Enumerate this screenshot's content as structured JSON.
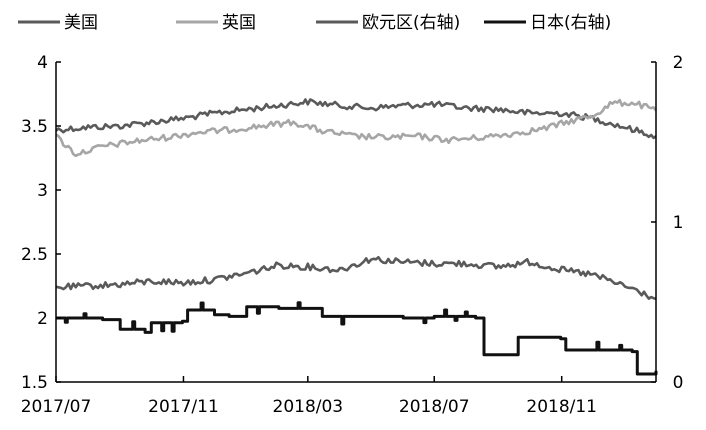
{
  "chart_data": {
    "type": "line",
    "title": "",
    "xlabel": "",
    "ylabel_left": "",
    "ylabel_right": "",
    "x_range": [
      "2017-07-01",
      "2019-01-31"
    ],
    "x_ticks": [
      {
        "date": "2017-07-01",
        "label": "2017/07"
      },
      {
        "date": "2017-11-01",
        "label": "2017/11"
      },
      {
        "date": "2018-03-01",
        "label": "2018/03"
      },
      {
        "date": "2018-07-01",
        "label": "2018/07"
      },
      {
        "date": "2018-11-01",
        "label": "2018/11"
      }
    ],
    "y_left": {
      "min": 1.5,
      "max": 4,
      "ticks": [
        "1.5",
        "2",
        "2.5",
        "3",
        "3.5",
        "4"
      ]
    },
    "y_right": {
      "min": 0,
      "max": 2,
      "ticks": [
        "0",
        "1",
        "2"
      ]
    },
    "grid": false,
    "legend_position": "top",
    "series": [
      {
        "name": "美国",
        "axis": "left",
        "color": "#5a5a5a",
        "points": [
          [
            "2017-07-01",
            3.47
          ],
          [
            "2017-08-01",
            3.49
          ],
          [
            "2017-09-01",
            3.5
          ],
          [
            "2017-10-01",
            3.53
          ],
          [
            "2017-11-01",
            3.56
          ],
          [
            "2017-12-01",
            3.6
          ],
          [
            "2018-01-01",
            3.63
          ],
          [
            "2018-02-01",
            3.66
          ],
          [
            "2018-03-01",
            3.69
          ],
          [
            "2018-04-01",
            3.66
          ],
          [
            "2018-05-01",
            3.64
          ],
          [
            "2018-06-01",
            3.66
          ],
          [
            "2018-07-01",
            3.67
          ],
          [
            "2018-08-01",
            3.64
          ],
          [
            "2018-09-01",
            3.63
          ],
          [
            "2018-10-01",
            3.6
          ],
          [
            "2018-11-01",
            3.6
          ],
          [
            "2018-12-01",
            3.56
          ],
          [
            "2019-01-01",
            3.49
          ],
          [
            "2019-01-31",
            3.42
          ]
        ]
      },
      {
        "name": "英国",
        "axis": "left",
        "color": "#a6a6a6",
        "points": [
          [
            "2017-07-01",
            3.42
          ],
          [
            "2017-07-20",
            3.28
          ],
          [
            "2017-08-15",
            3.34
          ],
          [
            "2017-09-15",
            3.38
          ],
          [
            "2017-10-15",
            3.41
          ],
          [
            "2017-11-15",
            3.45
          ],
          [
            "2017-12-15",
            3.47
          ],
          [
            "2018-01-15",
            3.5
          ],
          [
            "2018-02-15",
            3.53
          ],
          [
            "2018-03-15",
            3.46
          ],
          [
            "2018-04-15",
            3.42
          ],
          [
            "2018-05-15",
            3.41
          ],
          [
            "2018-06-15",
            3.42
          ],
          [
            "2018-07-15",
            3.39
          ],
          [
            "2018-08-15",
            3.41
          ],
          [
            "2018-09-15",
            3.44
          ],
          [
            "2018-10-15",
            3.48
          ],
          [
            "2018-11-15",
            3.55
          ],
          [
            "2018-12-01",
            3.58
          ],
          [
            "2018-12-20",
            3.68
          ],
          [
            "2019-01-10",
            3.68
          ],
          [
            "2019-01-31",
            3.62
          ]
        ]
      },
      {
        "name": "欧元区(右轴)",
        "axis": "right",
        "color": "#5a5a5a",
        "points": [
          [
            "2017-07-01",
            0.59
          ],
          [
            "2017-08-01",
            0.6
          ],
          [
            "2017-09-01",
            0.61
          ],
          [
            "2017-10-01",
            0.63
          ],
          [
            "2017-11-01",
            0.62
          ],
          [
            "2017-12-01",
            0.64
          ],
          [
            "2018-01-01",
            0.68
          ],
          [
            "2018-02-01",
            0.73
          ],
          [
            "2018-03-01",
            0.72
          ],
          [
            "2018-04-01",
            0.7
          ],
          [
            "2018-05-01",
            0.77
          ],
          [
            "2018-06-01",
            0.75
          ],
          [
            "2018-07-01",
            0.74
          ],
          [
            "2018-08-01",
            0.74
          ],
          [
            "2018-09-01",
            0.72
          ],
          [
            "2018-10-01",
            0.75
          ],
          [
            "2018-11-01",
            0.7
          ],
          [
            "2018-12-01",
            0.67
          ],
          [
            "2019-01-01",
            0.6
          ],
          [
            "2019-01-31",
            0.52
          ]
        ]
      },
      {
        "name": "日本(右轴)",
        "axis": "right",
        "color": "#111111",
        "points": [
          [
            "2017-07-01",
            0.4
          ],
          [
            "2017-08-15",
            0.39
          ],
          [
            "2017-09-01",
            0.33
          ],
          [
            "2017-09-25",
            0.31
          ],
          [
            "2017-10-01",
            0.37
          ],
          [
            "2017-10-31",
            0.38
          ],
          [
            "2017-11-05",
            0.45
          ],
          [
            "2017-12-01",
            0.42
          ],
          [
            "2017-12-15",
            0.41
          ],
          [
            "2018-01-01",
            0.47
          ],
          [
            "2018-02-01",
            0.46
          ],
          [
            "2018-03-01",
            0.46
          ],
          [
            "2018-03-15",
            0.41
          ],
          [
            "2018-05-01",
            0.41
          ],
          [
            "2018-06-01",
            0.4
          ],
          [
            "2018-07-01",
            0.41
          ],
          [
            "2018-08-10",
            0.4
          ],
          [
            "2018-08-18",
            0.17
          ],
          [
            "2018-09-12",
            0.17
          ],
          [
            "2018-09-20",
            0.28
          ],
          [
            "2018-10-31",
            0.27
          ],
          [
            "2018-11-05",
            0.2
          ],
          [
            "2018-12-15",
            0.2
          ],
          [
            "2019-01-08",
            0.19
          ],
          [
            "2019-01-13",
            0.05
          ],
          [
            "2019-01-31",
            0.07
          ]
        ]
      }
    ]
  }
}
